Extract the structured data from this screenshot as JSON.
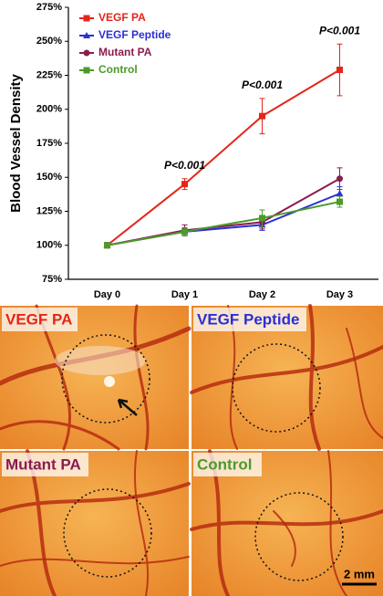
{
  "chart_data": {
    "type": "line",
    "ylabel": "Blood Vessel Density",
    "categories": [
      "Day 0",
      "Day 1",
      "Day 2",
      "Day 3"
    ],
    "series": [
      {
        "name": "VEGF PA",
        "color": "#e32619",
        "marker": "square",
        "values": [
          100,
          145,
          195,
          229
        ],
        "errors": [
          1,
          4,
          13,
          19
        ]
      },
      {
        "name": "VEGF Peptide",
        "color": "#2a2fd6",
        "marker": "triangle",
        "values": [
          100,
          110,
          115,
          138
        ],
        "errors": [
          1,
          2,
          4,
          5
        ]
      },
      {
        "name": "Mutant PA",
        "color": "#8a1c50",
        "marker": "circle",
        "values": [
          100,
          111,
          117,
          149
        ],
        "errors": [
          1,
          4,
          5,
          8
        ]
      },
      {
        "name": "Control",
        "color": "#4c9a2a",
        "marker": "square",
        "values": [
          100,
          110,
          120,
          132
        ],
        "errors": [
          1,
          3,
          6,
          4
        ]
      }
    ],
    "ylim": [
      75,
      275
    ],
    "yticks": [
      {
        "value": 75,
        "label": "75%"
      },
      {
        "value": 100,
        "label": "100%"
      },
      {
        "value": 125,
        "label": "125%"
      },
      {
        "value": 150,
        "label": "150%"
      },
      {
        "value": 175,
        "label": "175%"
      },
      {
        "value": 200,
        "label": "200%"
      },
      {
        "value": 225,
        "label": "225%"
      },
      {
        "value": 250,
        "label": "250%"
      },
      {
        "value": 275,
        "label": "275%"
      }
    ],
    "legend": "upper left",
    "annotations": [
      {
        "text": "P<0.001",
        "category": "Day 1"
      },
      {
        "text": "P<0.001",
        "category": "Day 2"
      },
      {
        "text": "P<0.001",
        "category": "Day 3"
      }
    ]
  },
  "figure_panels": {
    "panels": [
      {
        "label": "VEGF PA"
      },
      {
        "label": "VEGF Peptide"
      },
      {
        "label": "Mutant PA"
      },
      {
        "label": "Control"
      }
    ],
    "scale_bar": "2 mm"
  }
}
